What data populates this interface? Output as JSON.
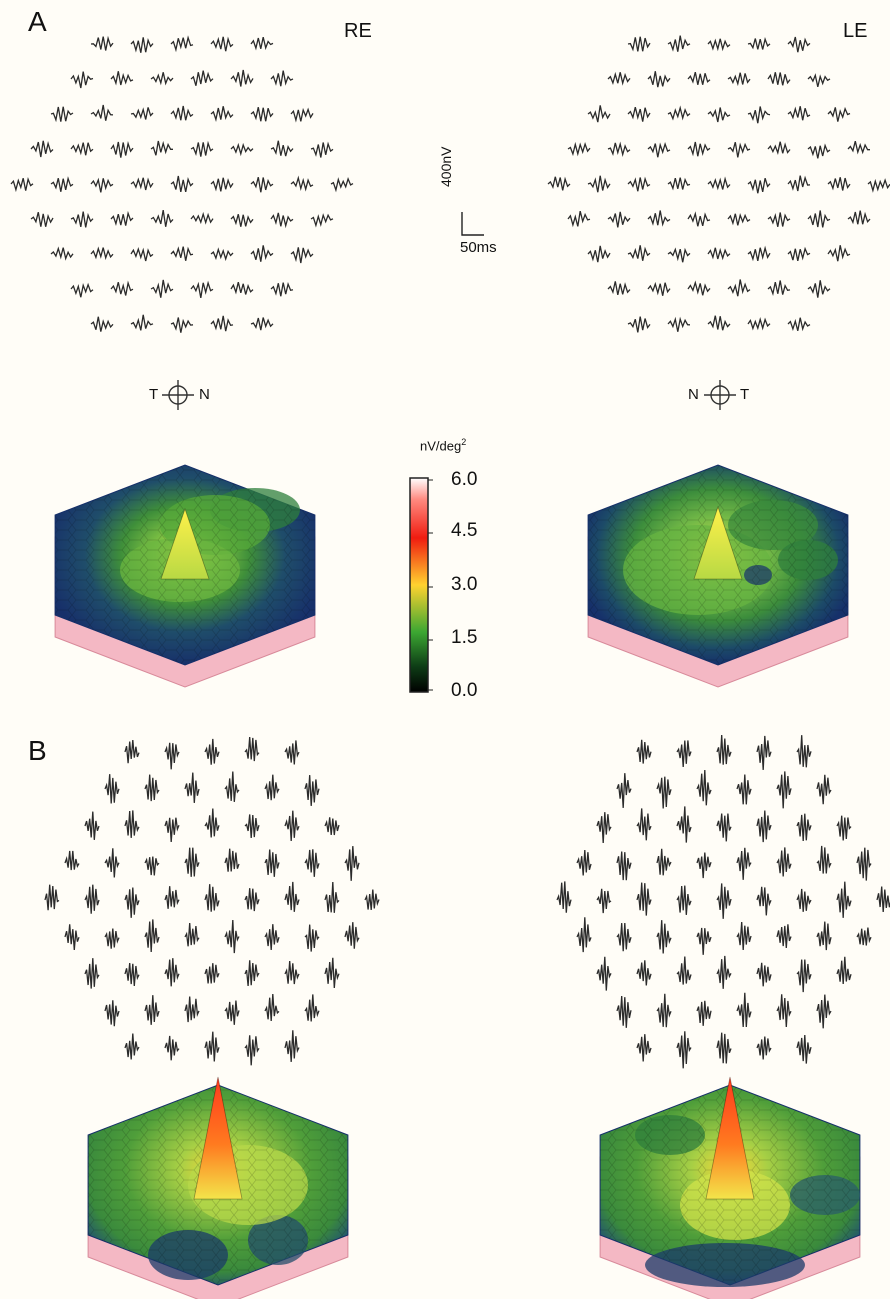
{
  "panels": [
    {
      "letter": "A"
    },
    {
      "letter": "B"
    }
  ],
  "eyes": {
    "right": "RE",
    "left": "LE"
  },
  "scale_bar": {
    "amplitude": "400nV",
    "time": "50ms"
  },
  "orientation": {
    "right": {
      "left": "T",
      "right": "N"
    },
    "left": {
      "left": "N",
      "right": "T"
    }
  },
  "colorbar": {
    "units": "nV/deg",
    "units_superscript": "2",
    "ticks": [
      "6.0",
      "4.5",
      "3.0",
      "1.5",
      "0.0"
    ],
    "colors": [
      "#ffffff",
      "#ff3b2f",
      "#ffd23a",
      "#3fae37",
      "#000000"
    ]
  },
  "colors": {
    "background": "#fffdf7",
    "trace": "#2b2b2b",
    "low_density": "#1f3d6e",
    "mid_density": "#56a93b",
    "peak": "#ff3b22",
    "base": "#f4b8c4"
  }
}
